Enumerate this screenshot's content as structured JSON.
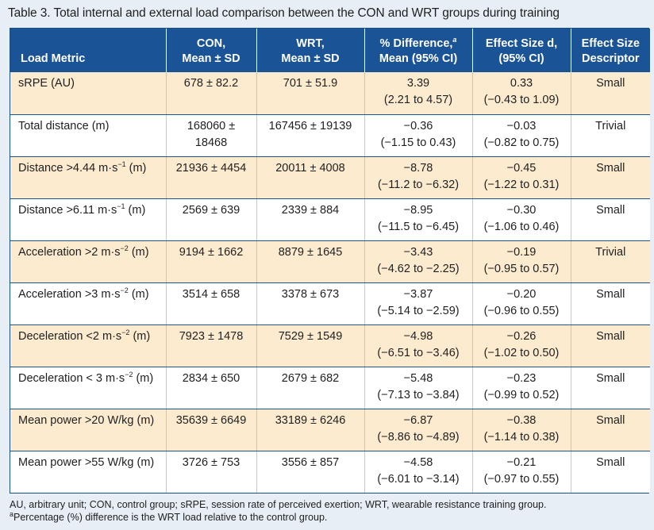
{
  "caption": {
    "label": "Table 3.",
    "text": "Total internal and external load comparison between the CON and WRT groups during training"
  },
  "header": {
    "metric": "Load Metric",
    "con_line1": "CON,",
    "con_line2": "Mean ± SD",
    "wrt_line1": "WRT,",
    "wrt_line2": "Mean ± SD",
    "diff_line1": "% Difference,",
    "diff_sup": "a",
    "diff_line2": "Mean (95% CI)",
    "es_line1": "Effect Size d,",
    "es_line2": "(95% CI)",
    "desc_line1": "Effect Size",
    "desc_line2": "Descriptor"
  },
  "rows": [
    {
      "metric_pre": "sRPE (AU)",
      "metric_sup": "",
      "metric_post": "",
      "con": "678 ± 82.2",
      "con2": "",
      "wrt": "701 ± 51.9",
      "diff": "3.39",
      "diff_ci": "(2.21 to 4.57)",
      "es": "0.33",
      "es_ci": "(−0.43 to 1.09)",
      "desc": "Small"
    },
    {
      "metric_pre": "Total distance (m)",
      "metric_sup": "",
      "metric_post": "",
      "con": "168060 ±",
      "con2": "18468",
      "wrt": "167456 ± 19139",
      "diff": "−0.36",
      "diff_ci": "(−1.15 to 0.43)",
      "es": "−0.03",
      "es_ci": "(−0.82 to 0.75)",
      "desc": "Trivial"
    },
    {
      "metric_pre": "Distance >4.44 m·s",
      "metric_sup": "−1",
      "metric_post": " (m)",
      "con": "21936 ± 4454",
      "con2": "",
      "wrt": "20011 ± 4008",
      "diff": "−8.78",
      "diff_ci": "(−11.2 to −6.32)",
      "es": "−0.45",
      "es_ci": "(−1.22 to 0.31)",
      "desc": "Small"
    },
    {
      "metric_pre": "Distance >6.11 m·s",
      "metric_sup": "−1",
      "metric_post": " (m)",
      "con": "2569 ± 639",
      "con2": "",
      "wrt": "2339 ± 884",
      "diff": "−8.95",
      "diff_ci": "(−11.5 to −6.45)",
      "es": "−0.30",
      "es_ci": "(−1.06 to 0.46)",
      "desc": "Small"
    },
    {
      "metric_pre": "Acceleration >2 m·s",
      "metric_sup": "−2",
      "metric_post": " (m)",
      "con": "9194 ± 1662",
      "con2": "",
      "wrt": "8879 ± 1645",
      "diff": "−3.43",
      "diff_ci": "(−4.62 to −2.25)",
      "es": "−0.19",
      "es_ci": "(−0.95 to 0.57)",
      "desc": "Trivial"
    },
    {
      "metric_pre": "Acceleration >3 m·s",
      "metric_sup": "−2",
      "metric_post": " (m)",
      "con": "3514 ± 658",
      "con2": "",
      "wrt": "3378 ± 673",
      "diff": "−3.87",
      "diff_ci": "(−5.14 to −2.59)",
      "es": "−0.20",
      "es_ci": "(−0.96 to 0.55)",
      "desc": "Small"
    },
    {
      "metric_pre": "Deceleration <2 m·s",
      "metric_sup": "−2",
      "metric_post": " (m)",
      "con": "7923 ± 1478",
      "con2": "",
      "wrt": "7529 ± 1549",
      "diff": "−4.98",
      "diff_ci": "(−6.51 to −3.46)",
      "es": "−0.26",
      "es_ci": "(−1.02 to 0.50)",
      "desc": "Small"
    },
    {
      "metric_pre": "Deceleration < 3 m·s",
      "metric_sup": "−2",
      "metric_post": " (m)",
      "con": "2834 ± 650",
      "con2": "",
      "wrt": "2679 ± 682",
      "diff": "−5.48",
      "diff_ci": "(−7.13 to −3.84)",
      "es": "−0.23",
      "es_ci": "(−0.99 to 0.52)",
      "desc": "Small"
    },
    {
      "metric_pre": "Mean power >20 W/kg (m)",
      "metric_sup": "",
      "metric_post": "",
      "con": "35639 ± 6649",
      "con2": "",
      "wrt": "33189 ± 6246",
      "diff": "−6.87",
      "diff_ci": "(−8.86 to −4.89)",
      "es": "−0.38",
      "es_ci": "(−1.14 to 0.38)",
      "desc": "Small"
    },
    {
      "metric_pre": "Mean power >55 W/kg (m)",
      "metric_sup": "",
      "metric_post": "",
      "con": "3726 ± 753",
      "con2": "",
      "wrt": "3556 ± 857",
      "diff": "−4.58",
      "diff_ci": "(−6.01 to −3.14)",
      "es": "−0.21",
      "es_ci": "(−0.97 to 0.55)",
      "desc": "Small"
    }
  ],
  "footnotes": {
    "abbrev": "AU, arbitrary unit; CON, control group; sRPE, session rate of perceived exertion; WRT, wearable resistance training group.",
    "a_mark": "a",
    "a_text": "Percentage (%) difference is the WRT load relative to the control group."
  },
  "colors": {
    "header_bg": "#1b5496",
    "row_highlight": "#fdebd0",
    "page_bg": "#e7eef6"
  }
}
